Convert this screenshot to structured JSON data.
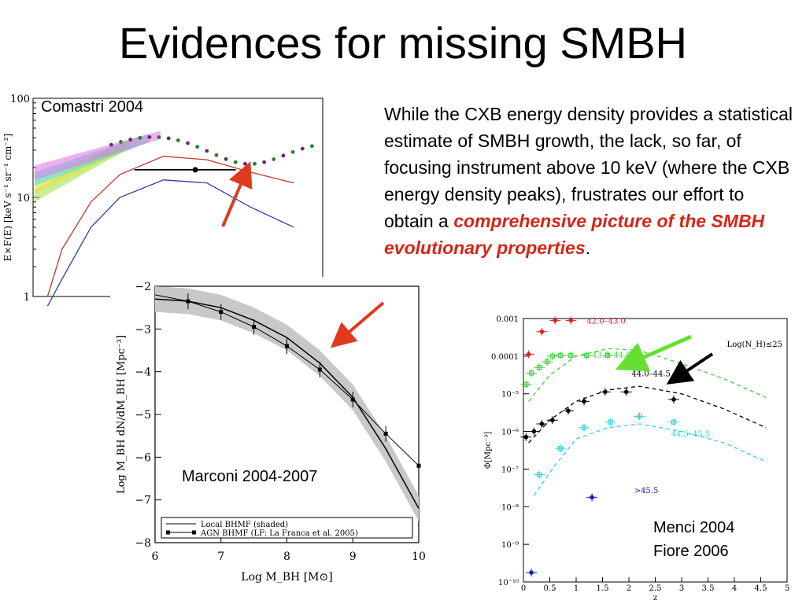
{
  "slide": {
    "title": "Evidences for missing SMBH",
    "paragraph_plain": "While the CXB energy density provides a statistical estimate of SMBH growth, the lack, so far, of focusing instrument above 10 keV (where the CXB energy density peaks), frustrates our effort to obtain a ",
    "paragraph_emph": "comprehensive picture of the SMBH evolutionary properties",
    "paragraph_end": "."
  },
  "chart_data": [
    {
      "type": "line",
      "credit": "Comastri 2004",
      "ylabel": "E×F(E) [keV s⁻¹ sr⁻¹ cm⁻²]",
      "yscale": "log",
      "ylim": [
        1,
        100
      ],
      "yticks": [
        "100",
        "10",
        "1"
      ],
      "series": [
        {
          "color": "#c0392b",
          "x": [
            0.05,
            0.1,
            0.2,
            0.3,
            0.45,
            0.6,
            0.75,
            0.9
          ],
          "y": [
            1,
            3,
            9,
            17,
            26,
            24,
            18,
            14
          ]
        },
        {
          "color": "#2c3e9e",
          "x": [
            0.05,
            0.1,
            0.2,
            0.3,
            0.45,
            0.6,
            0.75,
            0.9
          ],
          "y": [
            0.8,
            1.5,
            5,
            10,
            15,
            14,
            8,
            5
          ]
        }
      ],
      "points": [
        {
          "x": 0.56,
          "y": 19,
          "xerr": [
            0.35,
            0.7
          ],
          "color": "#000"
        }
      ]
    },
    {
      "type": "line",
      "credit": "Marconi 2004-2007",
      "xlabel": "Log M_BH [M⊙]",
      "ylabel": "Log M_BH dN/dM_BH [Mpc⁻³]",
      "xlim": [
        6,
        10
      ],
      "ylim": [
        -8,
        -2
      ],
      "xticks": [
        "6",
        "7",
        "8",
        "9",
        "10"
      ],
      "yticks": [
        "−2",
        "−3",
        "−4",
        "−5",
        "−6",
        "−7",
        "−8"
      ],
      "legend": [
        "Local BHMF (shaded)",
        "AGN BHMF (LF: La Franca et al. 2005)"
      ],
      "series": [
        {
          "name": "Local BHMF (shaded)",
          "x": [
            6,
            6.5,
            7,
            7.5,
            8,
            8.5,
            9,
            9.5,
            10
          ],
          "y": [
            -2.3,
            -2.35,
            -2.5,
            -2.8,
            -3.2,
            -3.8,
            -4.6,
            -5.8,
            -7.2
          ],
          "band": 0.3
        },
        {
          "name": "AGN BHMF (LF: La Franca et al. 2005)",
          "x": [
            6,
            6.5,
            7,
            7.5,
            8,
            8.5,
            9,
            9.5,
            10
          ],
          "y": [
            -2.2,
            -2.35,
            -2.6,
            -2.95,
            -3.4,
            -3.95,
            -4.65,
            -5.45,
            -6.2
          ]
        }
      ]
    },
    {
      "type": "scatter",
      "credits": [
        "Menci 2004",
        "Fiore 2006"
      ],
      "xlabel": "z",
      "ylabel": "Φ[Mpc⁻³]",
      "yscale": "log",
      "xlim": [
        0,
        5
      ],
      "ylim": [
        -10,
        -3
      ],
      "xticks": [
        "0",
        "0.5",
        "1",
        "1.5",
        "2",
        "2.5",
        "3",
        "3.5",
        "4",
        "4.5",
        "5"
      ],
      "yticks": [
        "0.001",
        "0.0001",
        "10⁻⁵",
        "10⁻⁶",
        "10⁻⁷",
        "10⁻⁸",
        "10⁻⁹",
        "10⁻¹⁰"
      ],
      "legend": "Log(N_H)≤25",
      "series": [
        {
          "name": "42.0–43.0",
          "color": "#e02020",
          "x": [
            0.1,
            0.35,
            0.6,
            0.9
          ],
          "y": [
            -3.95,
            -3.35,
            -3.05,
            -3.05
          ]
        },
        {
          "name": "43.0–44.0",
          "color": "#40d040",
          "x": [
            0.05,
            0.15,
            0.3,
            0.45,
            0.55,
            0.7,
            0.9,
            1.2,
            1.6,
            2.05
          ],
          "y": [
            -4.75,
            -4.45,
            -4.3,
            -4.15,
            -4.0,
            -3.98,
            -3.98,
            -3.98,
            -3.98,
            -4.0
          ]
        },
        {
          "name": "44.0–44.5",
          "color": "#000000",
          "x": [
            0.05,
            0.2,
            0.35,
            0.55,
            0.85,
            1.15,
            1.55,
            1.95,
            2.85
          ],
          "y": [
            -6.15,
            -6.0,
            -5.8,
            -5.7,
            -5.45,
            -5.2,
            -4.95,
            -4.95,
            -5.15
          ]
        },
        {
          "name": "44.5–45.5",
          "color": "#30d0e0",
          "x": [
            0.3,
            0.7,
            1.15,
            1.65,
            2.2,
            2.85
          ],
          "y": [
            -7.15,
            -6.45,
            -5.9,
            -5.75,
            -5.6,
            -5.75
          ]
        },
        {
          "name": ">45.5",
          "color": "#1020c0",
          "x": [
            0.15,
            1.3
          ],
          "y": [
            -9.75,
            -7.75
          ]
        }
      ],
      "models": [
        {
          "color": "#40d040",
          "x": [
            0.1,
            0.5,
            1.0,
            1.6,
            2.2,
            3.0,
            3.8,
            4.6
          ],
          "y": [
            -5.2,
            -4.5,
            -4.0,
            -3.8,
            -3.85,
            -4.2,
            -4.6,
            -5.1
          ]
        },
        {
          "color": "#000000",
          "x": [
            0.1,
            0.5,
            1.0,
            1.6,
            2.2,
            3.0,
            3.8,
            4.6
          ],
          "y": [
            -6.3,
            -5.7,
            -5.2,
            -4.9,
            -4.8,
            -5.0,
            -5.4,
            -5.9
          ]
        },
        {
          "color": "#30d0e0",
          "x": [
            0.2,
            0.6,
            1.0,
            1.6,
            2.2,
            3.0,
            3.8,
            4.6
          ],
          "y": [
            -7.7,
            -6.9,
            -6.2,
            -5.9,
            -5.8,
            -6.0,
            -6.3,
            -6.8
          ]
        }
      ]
    }
  ]
}
